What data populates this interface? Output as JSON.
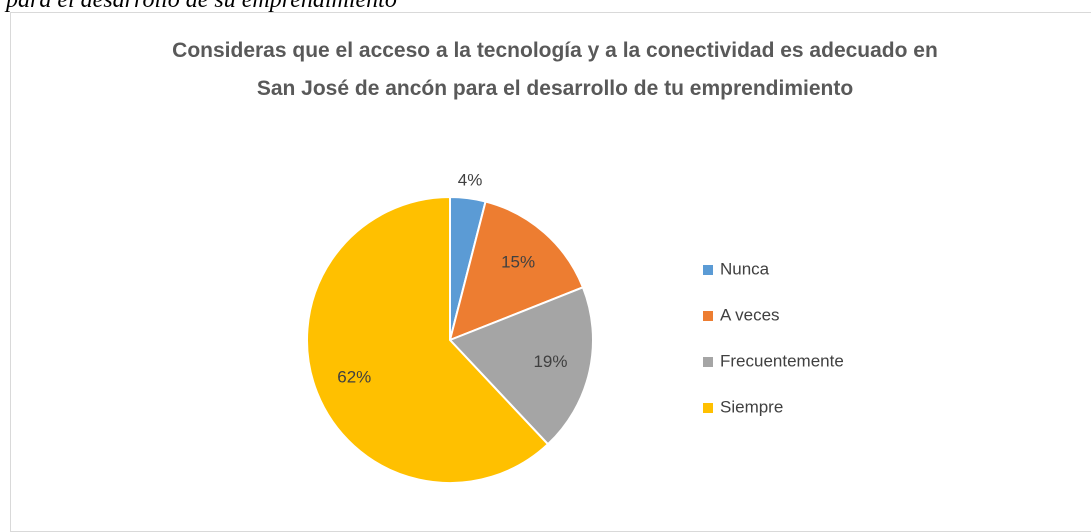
{
  "caption": "para el desarrollo de su emprendimiento",
  "chart_data": {
    "type": "pie",
    "title": "Consideras que el acceso a la tecnología y a la conectividad es adecuado en San José de ancón para el desarrollo de tu emprendimiento",
    "categories": [
      "Nunca",
      "A veces",
      "Frecuentemente",
      "Siempre"
    ],
    "values": [
      4,
      15,
      19,
      62
    ],
    "value_labels": [
      "4%",
      "15%",
      "19%",
      "62%"
    ],
    "colors": [
      "#5b9bd5",
      "#ed7d31",
      "#a5a5a5",
      "#ffc000"
    ],
    "legend": "right"
  }
}
